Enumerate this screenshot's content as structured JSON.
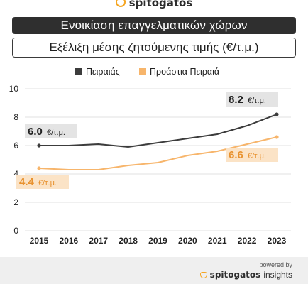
{
  "brand": {
    "name": "spitogatos"
  },
  "header": {
    "title": "Ενοικίαση επαγγελματικών χώρων",
    "subtitle": "Εξέλιξη μέσης ζητούμενης τιμής (€/τ.μ.)"
  },
  "footer": {
    "powered_by": "powered by",
    "brand": "spitogatos",
    "brand_suffix": "insights"
  },
  "colors": {
    "piraeus": "#3c3c3c",
    "suburbs": "#f7b56b",
    "label_bg_dark": "#e4e4e4",
    "label_bg_orange": "#fbe3c6",
    "suburbs_label_text": "#e8922f",
    "grid": "#e2e2e2"
  },
  "chart_data": {
    "type": "line",
    "x": [
      "2015",
      "2016",
      "2017",
      "2018",
      "2019",
      "2020",
      "2021",
      "2022",
      "2023"
    ],
    "ylim": [
      0,
      10
    ],
    "yticks": [
      "0",
      "2",
      "4",
      "6",
      "8",
      "10"
    ],
    "grid": true,
    "legend_position": "top",
    "series": [
      {
        "name": "Πειραιάς",
        "values": [
          6.0,
          6.0,
          6.1,
          5.9,
          6.2,
          6.5,
          6.8,
          7.4,
          8.2
        ]
      },
      {
        "name": "Προάστια Πειραιά",
        "values": [
          4.4,
          4.3,
          4.3,
          4.6,
          4.8,
          5.3,
          5.6,
          6.1,
          6.6
        ]
      }
    ],
    "annotations": [
      {
        "series": 0,
        "index": 0,
        "value": "6.0",
        "unit": "€/τ.μ."
      },
      {
        "series": 0,
        "index": 8,
        "value": "8.2",
        "unit": "€/τ.μ."
      },
      {
        "series": 1,
        "index": 0,
        "value": "4.4",
        "unit": "€/τ.μ."
      },
      {
        "series": 1,
        "index": 8,
        "value": "6.6",
        "unit": "€/τ.μ."
      }
    ]
  }
}
